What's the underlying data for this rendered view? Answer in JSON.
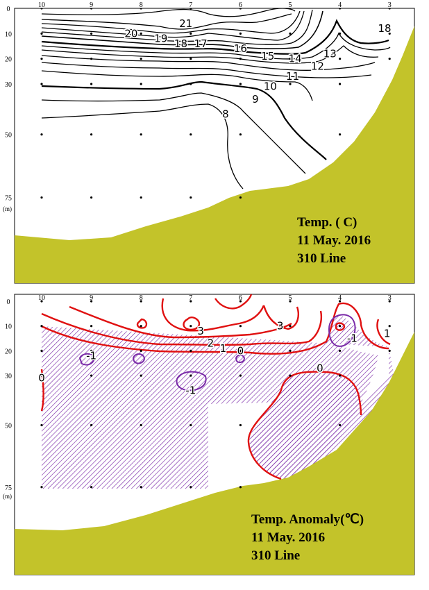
{
  "colors": {
    "land": "#c3c32a",
    "frame": "#000000",
    "positive_contour": "#e01010",
    "negative_contour": "#7a2aa8",
    "negative_hatch": "#7a2aa8"
  },
  "chart_data": [
    {
      "type": "contour",
      "title_lines": [
        "Temp. (  C)",
        "11 May. 2016",
        "310 Line"
      ],
      "station_labels": [
        "10",
        "9",
        "8",
        "7",
        "6",
        "5",
        "4",
        "3"
      ],
      "depth_labels": [
        "0",
        "10",
        "20",
        "30",
        "50",
        "75"
      ],
      "depth_unit": "(m)",
      "depth_values": [
        0,
        10,
        20,
        30,
        50,
        75
      ],
      "contour_labels": [
        {
          "text": "21",
          "station": 7.1,
          "depth": 6
        },
        {
          "text": "20",
          "station": 8.2,
          "depth": 10
        },
        {
          "text": "19",
          "station": 7.6,
          "depth": 12
        },
        {
          "text": "18",
          "station": 7.2,
          "depth": 14
        },
        {
          "text": "17",
          "station": 6.8,
          "depth": 14
        },
        {
          "text": "16",
          "station": 6.0,
          "depth": 16
        },
        {
          "text": "15",
          "station": 5.45,
          "depth": 19
        },
        {
          "text": "14",
          "station": 4.9,
          "depth": 20
        },
        {
          "text": "13",
          "station": 4.2,
          "depth": 18
        },
        {
          "text": "12",
          "station": 4.45,
          "depth": 23
        },
        {
          "text": "11",
          "station": 4.95,
          "depth": 27
        },
        {
          "text": "10",
          "station": 5.4,
          "depth": 31
        },
        {
          "text": "9",
          "station": 5.7,
          "depth": 36
        },
        {
          "text": "8",
          "station": 6.3,
          "depth": 42
        },
        {
          "text": "18",
          "station": 3.1,
          "depth": 8
        }
      ]
    },
    {
      "type": "contour",
      "title_lines": [
        "Temp. Anomaly(℃)",
        "11 May. 2016",
        "310 Line"
      ],
      "station_labels": [
        "10",
        "9",
        "8",
        "7",
        "6",
        "5",
        "4",
        "3"
      ],
      "depth_labels": [
        "0",
        "10",
        "20",
        "30",
        "50",
        "75"
      ],
      "depth_unit": "(m)",
      "depth_values": [
        0,
        10,
        20,
        30,
        50,
        75
      ],
      "contour_labels": [
        {
          "text": "3",
          "station": 6.8,
          "depth": 12
        },
        {
          "text": "2",
          "station": 6.6,
          "depth": 17
        },
        {
          "text": "1",
          "station": 6.35,
          "depth": 19
        },
        {
          "text": "0",
          "station": 6.0,
          "depth": 20
        },
        {
          "text": "3",
          "station": 5.2,
          "depth": 10
        },
        {
          "text": "0",
          "station": 4.4,
          "depth": 27
        },
        {
          "text": "0",
          "station": 10.0,
          "depth": 31
        },
        {
          "text": "-1",
          "station": 9.0,
          "depth": 22
        },
        {
          "text": "-1",
          "station": 7.0,
          "depth": 36
        },
        {
          "text": "-1",
          "station": 3.75,
          "depth": 15
        },
        {
          "text": "1",
          "station": 3.05,
          "depth": 13
        }
      ]
    }
  ]
}
